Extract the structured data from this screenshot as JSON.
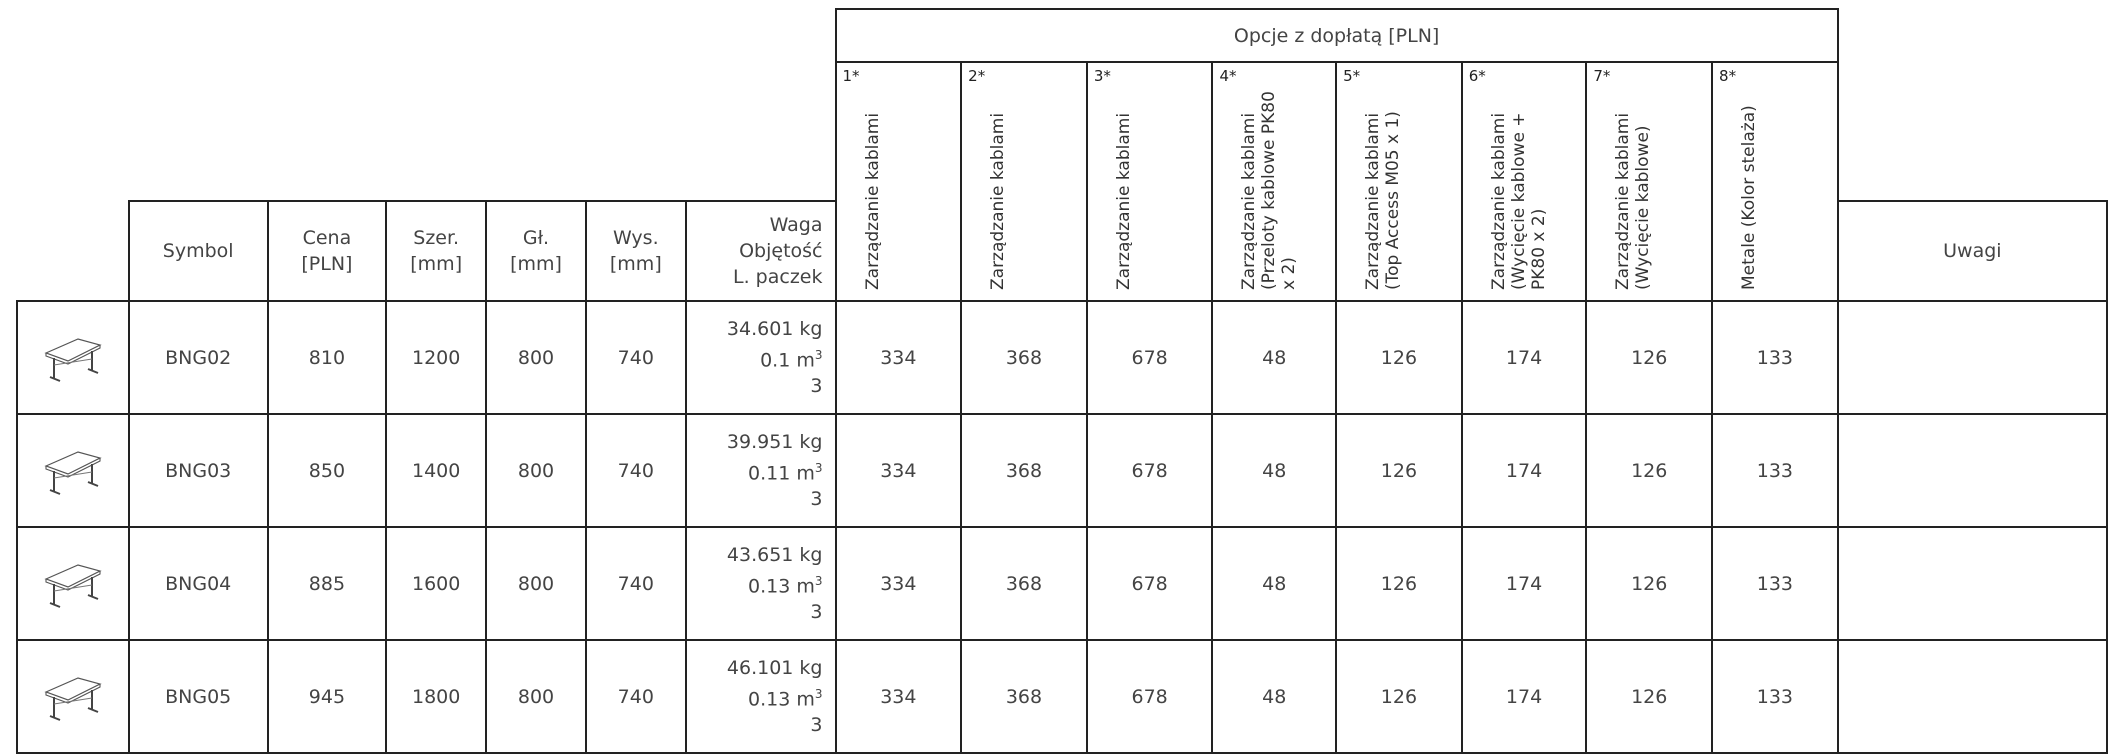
{
  "group_header": "Opcje z dopłatą [PLN]",
  "columns": {
    "symbol": "Symbol",
    "price": [
      "Cena",
      "[PLN]"
    ],
    "width": [
      "Szer.",
      "[mm]"
    ],
    "depth": [
      "Gł.",
      "[mm]"
    ],
    "height": [
      "Wys.",
      "[mm]"
    ],
    "weight": [
      "Waga",
      "Objętość",
      "L. paczek"
    ],
    "notes": "Uwagi"
  },
  "options": [
    {
      "num": "1*",
      "label": "Zarządzanie kablami"
    },
    {
      "num": "2*",
      "label": "Zarządzanie kablami"
    },
    {
      "num": "3*",
      "label": "Zarządzanie kablami"
    },
    {
      "num": "4*",
      "label": "Zarządzanie kablami (Przeloty kablowe PK80 x 2)"
    },
    {
      "num": "5*",
      "label": "Zarządzanie kablami (Top Access M05 x 1)"
    },
    {
      "num": "6*",
      "label": "Zarządzanie kablami (Wycięcie kablowe + PK80 x 2)"
    },
    {
      "num": "7*",
      "label": "Zarządzanie kablami (Wycięcie kablowe)"
    },
    {
      "num": "8*",
      "label": "Metale (Kolor stelaża)"
    }
  ],
  "units": {
    "volume": "m",
    "volume_exp": "3"
  },
  "rows": [
    {
      "symbol": "BNG02",
      "price": "810",
      "width": "1200",
      "depth": "800",
      "height": "740",
      "weight": "34.601 kg",
      "volume": "0.1",
      "packages": "3",
      "opts": [
        "334",
        "368",
        "678",
        "48",
        "126",
        "174",
        "126",
        "133"
      ],
      "notes": ""
    },
    {
      "symbol": "BNG03",
      "price": "850",
      "width": "1400",
      "depth": "800",
      "height": "740",
      "weight": "39.951 kg",
      "volume": "0.11",
      "packages": "3",
      "opts": [
        "334",
        "368",
        "678",
        "48",
        "126",
        "174",
        "126",
        "133"
      ],
      "notes": ""
    },
    {
      "symbol": "BNG04",
      "price": "885",
      "width": "1600",
      "depth": "800",
      "height": "740",
      "weight": "43.651 kg",
      "volume": "0.13",
      "packages": "3",
      "opts": [
        "334",
        "368",
        "678",
        "48",
        "126",
        "174",
        "126",
        "133"
      ],
      "notes": ""
    },
    {
      "symbol": "BNG05",
      "price": "945",
      "width": "1800",
      "depth": "800",
      "height": "740",
      "weight": "46.101 kg",
      "volume": "0.13",
      "packages": "3",
      "opts": [
        "334",
        "368",
        "678",
        "48",
        "126",
        "174",
        "126",
        "133"
      ],
      "notes": ""
    }
  ],
  "icons": {
    "product": "table-desk-icon"
  }
}
